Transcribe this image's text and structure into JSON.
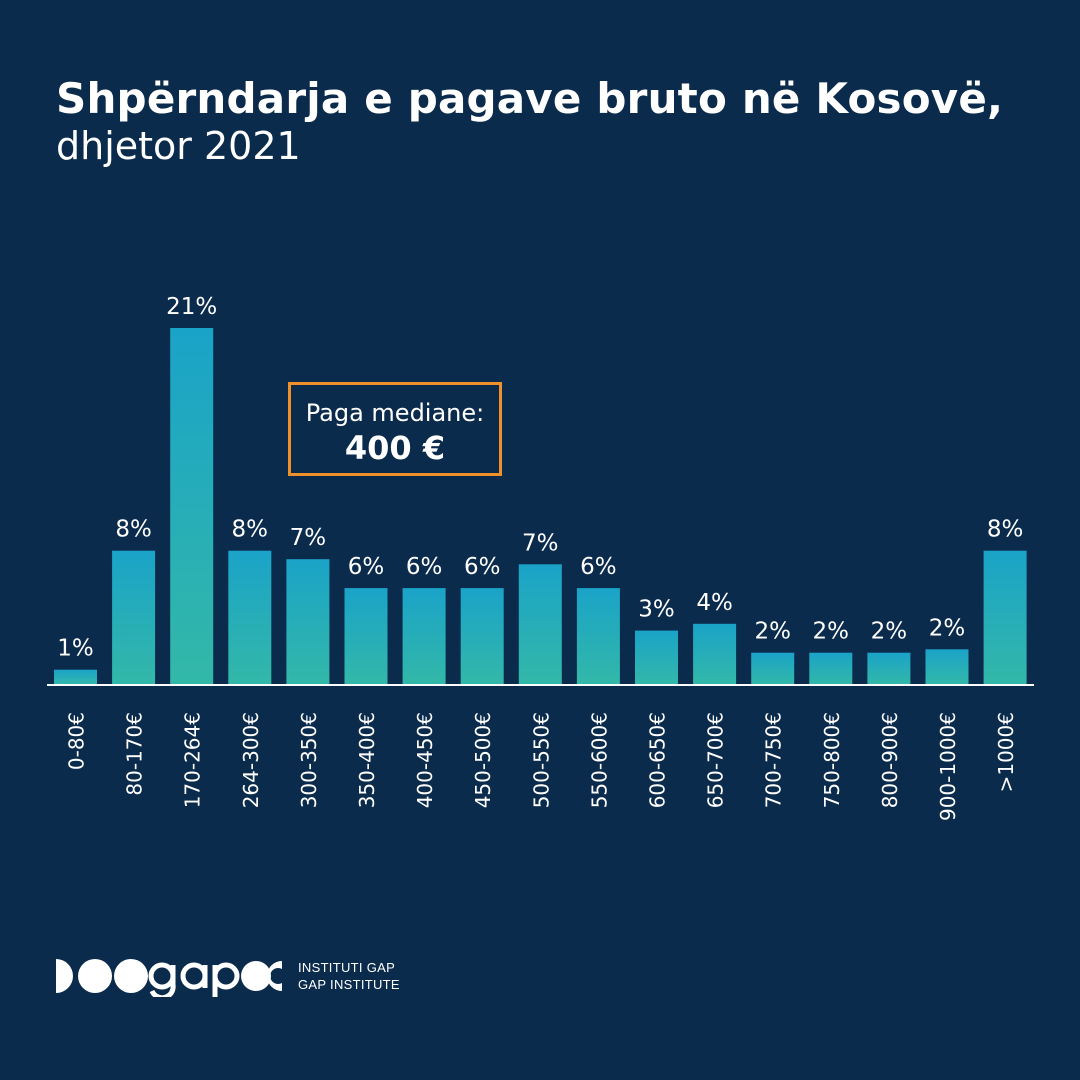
{
  "header": {
    "title": "Shpërndarja e pagave bruto në Kosovë,",
    "subtitle": "dhjetor 2021"
  },
  "annotation": {
    "label": "Paga mediane:",
    "value": "400 €",
    "color": "#f0902a"
  },
  "logo": {
    "line1": "INSTITUTI GAP",
    "line2": "GAP INSTITUTE"
  },
  "colors": {
    "background": "#0b2b4d",
    "bar_top": "#1aa3c8",
    "bar_bottom": "#33b8a8",
    "axis": "#ffffff",
    "text": "#ffffff"
  },
  "chart_data": {
    "type": "bar",
    "categories": [
      "0-80€",
      "80-170€",
      "170-264€",
      "264-300€",
      "300-350€",
      "350-400€",
      "400-450€",
      "450-500€",
      "500-550€",
      "550-600€",
      "600-650€",
      "650-700€",
      "700-750€",
      "750-800€",
      "800-900€",
      "900-1000€",
      ">1000€"
    ],
    "values": [
      0.9,
      7.9,
      21,
      7.9,
      7.4,
      5.7,
      5.7,
      5.7,
      7.1,
      5.7,
      3.2,
      3.6,
      1.9,
      1.9,
      1.9,
      2.1,
      7.9
    ],
    "data_labels": [
      "1%",
      "8%",
      "21%",
      "8%",
      "7%",
      "6%",
      "6%",
      "6%",
      "7%",
      "6%",
      "3%",
      "4%",
      "2%",
      "2%",
      "2%",
      "2%",
      "8%"
    ],
    "ylim": [
      0,
      21
    ],
    "grid": false,
    "legend": "none"
  }
}
